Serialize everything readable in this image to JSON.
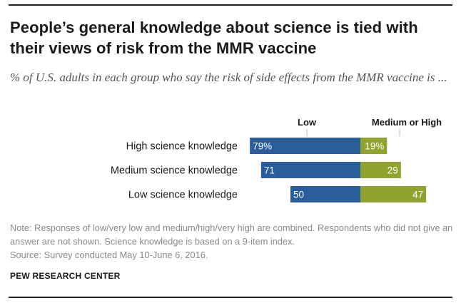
{
  "header": {
    "title": "People’s general knowledge about science is tied with their views of risk from the MMR vaccine",
    "subtitle": "% of U.S. adults in each group who say the risk of side effects from the MMR vaccine is ..."
  },
  "footer": {
    "note": "Note: Responses of low/very low and medium/high/very high are combined. Respondents who did not give an answer are not shown. Science knowledge is based on a 9-item index.",
    "source": "Source: Survey conducted May 10-June 6, 2016.",
    "org": "PEW RESEARCH CENTER"
  },
  "colors": {
    "low": "#2a5d9b",
    "medium_high": "#8ea42f",
    "label_text": "#ffffff"
  },
  "chart_data": {
    "type": "bar",
    "orientation": "horizontal",
    "stacked": "diverging",
    "categories": [
      "High science knowledge",
      "Medium science knowledge",
      "Low science knowledge"
    ],
    "series": [
      {
        "name": "Low",
        "values": [
          79,
          71,
          50
        ],
        "labels": [
          "79%",
          "71",
          "50"
        ]
      },
      {
        "name": "Medium or High",
        "values": [
          19,
          29,
          47
        ],
        "labels": [
          "19%",
          "29",
          "47"
        ]
      }
    ],
    "legend": "top"
  }
}
